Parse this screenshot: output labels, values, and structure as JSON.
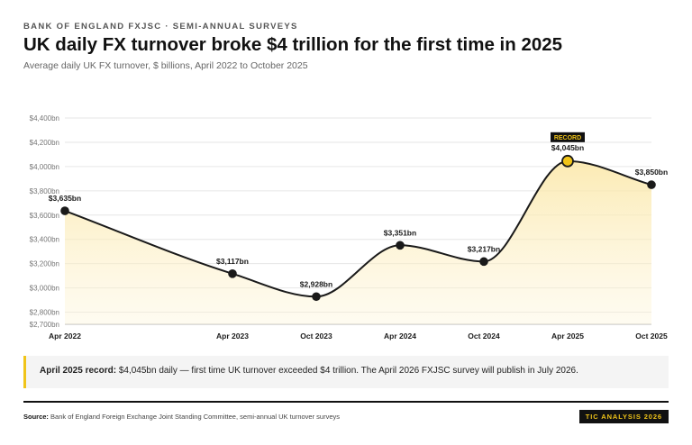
{
  "header": {
    "kicker": "BANK OF ENGLAND FXJSC · SEMI-ANNUAL SURVEYS",
    "title": "UK daily FX turnover broke $4 trillion for the first time in 2025",
    "subtitle": "Average daily UK FX turnover, $ billions, April 2022 to October 2025"
  },
  "chart_data": {
    "type": "line",
    "title": "UK daily FX turnover broke $4 trillion for the first time in 2025",
    "subtitle": "Average daily UK FX turnover, $ billions, April 2022 to October 2025",
    "categories": [
      "Apr 2022",
      "Apr 2023",
      "Oct 2023",
      "Apr 2024",
      "Oct 2024",
      "Apr 2025",
      "Oct 2025"
    ],
    "x_positions_months": [
      0,
      12,
      18,
      24,
      30,
      36,
      42
    ],
    "values": [
      3635,
      3117,
      2928,
      3351,
      3217,
      4045,
      3850
    ],
    "data_labels": [
      "$3,635bn",
      "$3,117bn",
      "$2,928bn",
      "$3,351bn",
      "$3,217bn",
      "$4,045bn",
      "$3,850bn"
    ],
    "yticks": [
      2700,
      2800,
      3000,
      3200,
      3400,
      3600,
      3800,
      4000,
      4200,
      4400
    ],
    "ytick_labels": [
      "$2,700bn",
      "$2,800bn",
      "$3,000bn",
      "$3,200bn",
      "$3,400bn",
      "$3,600bn",
      "$3,800bn",
      "$4,000bn",
      "$4,200bn",
      "$4,400bn"
    ],
    "ylim": [
      2700,
      4400
    ],
    "grid": true,
    "highlight_index": 5,
    "highlight_label": "RECORD",
    "colors": {
      "line": "#1a1a1a",
      "fill": "#fdf0c2",
      "highlight": "#f0c419"
    }
  },
  "note": {
    "lead": "April 2025 record:",
    "text": " $4,045bn daily — first time UK turnover exceeded $4 trillion. The April 2026 FXJSC survey will publish in July 2026."
  },
  "footer": {
    "source_label": "Source:",
    "source_text": " Bank of England Foreign Exchange Joint Standing Committee, semi-annual UK turnover surveys",
    "badge": "TIC ANALYSIS 2026"
  }
}
